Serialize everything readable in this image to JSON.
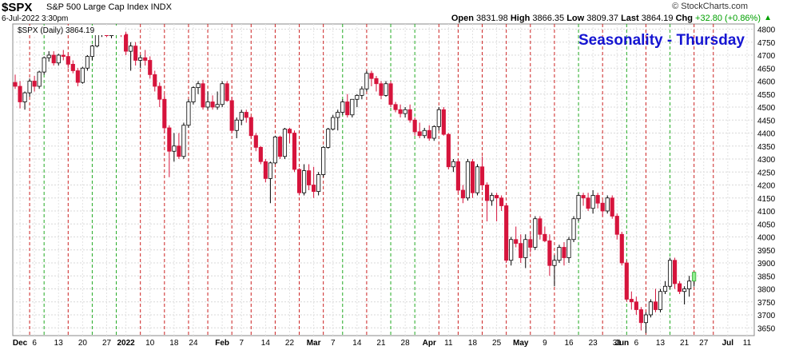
{
  "header": {
    "symbol": "$SPX",
    "description": "S&P 500 Large Cap Index  INDX",
    "datetime": "6-Jul-2022 3:30pm",
    "brand": "© StockCharts.com",
    "open_label": "Open",
    "open": "3831.98",
    "high_label": "High",
    "high": "3866.35",
    "low_label": "Low",
    "low": "3809.37",
    "last_label": "Last",
    "last": "3864.19",
    "chg_label": "Chg",
    "chg": "+32.80 (+0.86%)",
    "up_arrow": "▲"
  },
  "legend": {
    "text": "$SPX (Daily) 3864.19"
  },
  "colors": {
    "up": "#ffffff",
    "down": "#d6143c",
    "outline": "#000000",
    "green_line": "#22aa22",
    "red_line": "#cc2222",
    "title": "#1515d2",
    "last_bar": "#90ee90"
  },
  "chart_data": {
    "type": "candlestick",
    "title": "Seasonality - Thursday",
    "y_ticks": [
      3650,
      3700,
      3750,
      3800,
      3850,
      3900,
      3950,
      4000,
      4050,
      4100,
      4150,
      4200,
      4250,
      4300,
      4350,
      4400,
      4450,
      4500,
      4550,
      4600,
      4650,
      4700,
      4750,
      4800
    ],
    "ylim": [
      3620,
      4820
    ],
    "x_labels": [
      {
        "label": "Dec",
        "bold": true,
        "i": 1
      },
      {
        "label": "6",
        "i": 4
      },
      {
        "label": "13",
        "i": 9
      },
      {
        "label": "20",
        "i": 14
      },
      {
        "label": "27",
        "i": 19
      },
      {
        "label": "2022",
        "bold": true,
        "i": 23
      },
      {
        "label": "10",
        "i": 28
      },
      {
        "label": "18",
        "i": 33
      },
      {
        "label": "24",
        "i": 37
      },
      {
        "label": "Feb",
        "bold": true,
        "i": 43
      },
      {
        "label": "7",
        "i": 47
      },
      {
        "label": "14",
        "i": 52
      },
      {
        "label": "22",
        "i": 57
      },
      {
        "label": "Mar",
        "bold": true,
        "i": 62
      },
      {
        "label": "7",
        "i": 66
      },
      {
        "label": "14",
        "i": 71
      },
      {
        "label": "21",
        "i": 76
      },
      {
        "label": "28",
        "i": 81
      },
      {
        "label": "Apr",
        "bold": true,
        "i": 86
      },
      {
        "label": "11",
        "i": 90
      },
      {
        "label": "18",
        "i": 95
      },
      {
        "label": "25",
        "i": 100
      },
      {
        "label": "May",
        "bold": true,
        "i": 105
      },
      {
        "label": "9",
        "i": 110
      },
      {
        "label": "16",
        "i": 115
      },
      {
        "label": "23",
        "i": 120
      },
      {
        "label": "31",
        "i": 125
      },
      {
        "label": "Jun",
        "bold": true,
        "i": 126
      },
      {
        "label": "6",
        "i": 129
      },
      {
        "label": "13",
        "i": 134
      },
      {
        "label": "21",
        "i": 139
      },
      {
        "label": "27",
        "i": 143
      },
      {
        "label": "Jul",
        "bold": true,
        "i": 148
      },
      {
        "label": "11",
        "i": 152
      }
    ],
    "vlines": [
      {
        "i": 3,
        "c": "r"
      },
      {
        "i": 6,
        "c": "g"
      },
      {
        "i": 11,
        "c": "r"
      },
      {
        "i": 16,
        "c": "g"
      },
      {
        "i": 21,
        "c": "g"
      },
      {
        "i": 26,
        "c": "r"
      },
      {
        "i": 31,
        "c": "r"
      },
      {
        "i": 36,
        "c": "r"
      },
      {
        "i": 40,
        "c": "r"
      },
      {
        "i": 45,
        "c": "r"
      },
      {
        "i": 49,
        "c": "r"
      },
      {
        "i": 54,
        "c": "r"
      },
      {
        "i": 59,
        "c": "r"
      },
      {
        "i": 64,
        "c": "r"
      },
      {
        "i": 68,
        "c": "g"
      },
      {
        "i": 73,
        "c": "r"
      },
      {
        "i": 78,
        "c": "g"
      },
      {
        "i": 83,
        "c": "g"
      },
      {
        "i": 88,
        "c": "r"
      },
      {
        "i": 92,
        "c": "r"
      },
      {
        "i": 97,
        "c": "r"
      },
      {
        "i": 102,
        "c": "r"
      },
      {
        "i": 107,
        "c": "r"
      },
      {
        "i": 112,
        "c": "r"
      },
      {
        "i": 117,
        "c": "g"
      },
      {
        "i": 122,
        "c": "r"
      },
      {
        "i": 127,
        "c": "g"
      },
      {
        "i": 131,
        "c": "r"
      },
      {
        "i": 136,
        "c": "g"
      },
      {
        "i": 141,
        "c": "r"
      },
      {
        "i": 145,
        "c": "r"
      }
    ],
    "n_slots": 154,
    "candles": [
      [
        4595,
        4625,
        4570,
        4580
      ],
      [
        4580,
        4600,
        4495,
        4520
      ],
      [
        4520,
        4560,
        4490,
        4555
      ],
      [
        4555,
        4610,
        4540,
        4600
      ],
      [
        4600,
        4620,
        4560,
        4580
      ],
      [
        4580,
        4640,
        4570,
        4635
      ],
      [
        4635,
        4695,
        4625,
        4690
      ],
      [
        4690,
        4715,
        4675,
        4700
      ],
      [
        4700,
        4715,
        4660,
        4670
      ],
      [
        4670,
        4705,
        4660,
        4700
      ],
      [
        4700,
        4720,
        4680,
        4695
      ],
      [
        4695,
        4710,
        4650,
        4665
      ],
      [
        4665,
        4680,
        4630,
        4640
      ],
      [
        4640,
        4650,
        4580,
        4595
      ],
      [
        4595,
        4655,
        4590,
        4650
      ],
      [
        4650,
        4700,
        4640,
        4695
      ],
      [
        4695,
        4740,
        4680,
        4735
      ],
      [
        4735,
        4790,
        4730,
        4785
      ],
      [
        4785,
        4800,
        4770,
        4790
      ],
      [
        4790,
        4800,
        4770,
        4775
      ],
      [
        4775,
        4795,
        4765,
        4780
      ],
      [
        4780,
        4800,
        4780,
        4795
      ],
      [
        4795,
        4805,
        4770,
        4780
      ],
      [
        4780,
        4790,
        4700,
        4715
      ],
      [
        4715,
        4750,
        4640,
        4735
      ],
      [
        4735,
        4750,
        4660,
        4680
      ],
      [
        4680,
        4700,
        4650,
        4690
      ],
      [
        4690,
        4720,
        4660,
        4680
      ],
      [
        4680,
        4695,
        4610,
        4625
      ],
      [
        4625,
        4640,
        4560,
        4580
      ],
      [
        4580,
        4595,
        4500,
        4530
      ],
      [
        4530,
        4550,
        4400,
        4420
      ],
      [
        4420,
        4430,
        4230,
        4330
      ],
      [
        4330,
        4400,
        4290,
        4350
      ],
      [
        4350,
        4400,
        4300,
        4310
      ],
      [
        4310,
        4440,
        4300,
        4430
      ],
      [
        4430,
        4530,
        4420,
        4520
      ],
      [
        4520,
        4580,
        4510,
        4575
      ],
      [
        4575,
        4600,
        4550,
        4590
      ],
      [
        4590,
        4605,
        4490,
        4500
      ],
      [
        4500,
        4560,
        4490,
        4520
      ],
      [
        4520,
        4545,
        4490,
        4500
      ],
      [
        4500,
        4560,
        4490,
        4510
      ],
      [
        4510,
        4600,
        4500,
        4590
      ],
      [
        4590,
        4600,
        4520,
        4525
      ],
      [
        4525,
        4540,
        4400,
        4410
      ],
      [
        4410,
        4460,
        4380,
        4450
      ],
      [
        4450,
        4490,
        4430,
        4480
      ],
      [
        4480,
        4490,
        4440,
        4460
      ],
      [
        4460,
        4465,
        4380,
        4390
      ],
      [
        4390,
        4400,
        4330,
        4345
      ],
      [
        4345,
        4350,
        4280,
        4290
      ],
      [
        4290,
        4300,
        4210,
        4225
      ],
      [
        4225,
        4290,
        4130,
        4285
      ],
      [
        4285,
        4390,
        4280,
        4385
      ],
      [
        4385,
        4390,
        4300,
        4310
      ],
      [
        4310,
        4420,
        4300,
        4415
      ],
      [
        4415,
        4420,
        4360,
        4400
      ],
      [
        4400,
        4410,
        4250,
        4260
      ],
      [
        4260,
        4265,
        4160,
        4170
      ],
      [
        4170,
        4280,
        4160,
        4255
      ],
      [
        4255,
        4280,
        4180,
        4200
      ],
      [
        4200,
        4270,
        4150,
        4175
      ],
      [
        4175,
        4250,
        4160,
        4240
      ],
      [
        4240,
        4350,
        4230,
        4345
      ],
      [
        4345,
        4420,
        4340,
        4415
      ],
      [
        4415,
        4470,
        4410,
        4460
      ],
      [
        4460,
        4490,
        4410,
        4480
      ],
      [
        4480,
        4530,
        4470,
        4520
      ],
      [
        4520,
        4550,
        4460,
        4470
      ],
      [
        4470,
        4530,
        4460,
        4530
      ],
      [
        4530,
        4550,
        4500,
        4545
      ],
      [
        4545,
        4580,
        4530,
        4570
      ],
      [
        4570,
        4640,
        4560,
        4630
      ],
      [
        4630,
        4640,
        4580,
        4610
      ],
      [
        4610,
        4620,
        4560,
        4590
      ],
      [
        4590,
        4600,
        4530,
        4545
      ],
      [
        4545,
        4600,
        4540,
        4590
      ],
      [
        4590,
        4600,
        4500,
        4510
      ],
      [
        4510,
        4520,
        4480,
        4490
      ],
      [
        4490,
        4510,
        4460,
        4475
      ],
      [
        4475,
        4500,
        4460,
        4490
      ],
      [
        4490,
        4510,
        4440,
        4450
      ],
      [
        4450,
        4460,
        4390,
        4405
      ],
      [
        4405,
        4440,
        4380,
        4390
      ],
      [
        4390,
        4420,
        4380,
        4410
      ],
      [
        4410,
        4430,
        4370,
        4380
      ],
      [
        4380,
        4430,
        4370,
        4425
      ],
      [
        4425,
        4500,
        4410,
        4490
      ],
      [
        4490,
        4500,
        4390,
        4395
      ],
      [
        4395,
        4400,
        4260,
        4270
      ],
      [
        4270,
        4300,
        4250,
        4290
      ],
      [
        4290,
        4300,
        4170,
        4180
      ],
      [
        4180,
        4200,
        4130,
        4150
      ],
      [
        4150,
        4300,
        4140,
        4290
      ],
      [
        4290,
        4300,
        4150,
        4170
      ],
      [
        4170,
        4280,
        4160,
        4270
      ],
      [
        4270,
        4310,
        4180,
        4200
      ],
      [
        4200,
        4210,
        4060,
        4140
      ],
      [
        4140,
        4170,
        4120,
        4160
      ],
      [
        4160,
        4170,
        4060,
        4150
      ],
      [
        4150,
        4160,
        4100,
        4120
      ],
      [
        4120,
        4130,
        3900,
        3910
      ],
      [
        3910,
        4000,
        3890,
        3990
      ],
      [
        3990,
        4040,
        3960,
        3975
      ],
      [
        3975,
        4010,
        3900,
        3920
      ],
      [
        3920,
        4010,
        3880,
        3990
      ],
      [
        3990,
        4020,
        3940,
        3960
      ],
      [
        3960,
        4080,
        3950,
        4070
      ],
      [
        4070,
        4080,
        3990,
        4010
      ],
      [
        4010,
        4040,
        3980,
        3985
      ],
      [
        3985,
        4010,
        3850,
        3890
      ],
      [
        3890,
        3930,
        3810,
        3910
      ],
      [
        3910,
        3970,
        3900,
        3960
      ],
      [
        3960,
        3980,
        3890,
        3920
      ],
      [
        3920,
        4000,
        3900,
        3990
      ],
      [
        3990,
        4080,
        3980,
        4070
      ],
      [
        4070,
        4170,
        4060,
        4160
      ],
      [
        4160,
        4170,
        4120,
        4150
      ],
      [
        4150,
        4170,
        4100,
        4110
      ],
      [
        4110,
        4180,
        4090,
        4160
      ],
      [
        4160,
        4170,
        4110,
        4130
      ],
      [
        4130,
        4140,
        4080,
        4100
      ],
      [
        4100,
        4160,
        4090,
        4150
      ],
      [
        4150,
        4160,
        4070,
        4080
      ],
      [
        4080,
        4090,
        3990,
        4010
      ],
      [
        4010,
        4020,
        3890,
        3900
      ],
      [
        3900,
        3910,
        3750,
        3760
      ],
      [
        3760,
        3790,
        3720,
        3750
      ],
      [
        3750,
        3770,
        3700,
        3720
      ],
      [
        3720,
        3730,
        3640,
        3670
      ],
      [
        3670,
        3710,
        3630,
        3700
      ],
      [
        3700,
        3760,
        3690,
        3750
      ],
      [
        3750,
        3800,
        3710,
        3720
      ],
      [
        3720,
        3800,
        3710,
        3790
      ],
      [
        3790,
        3830,
        3780,
        3810
      ],
      [
        3810,
        3920,
        3800,
        3910
      ],
      [
        3910,
        3920,
        3800,
        3820
      ],
      [
        3820,
        3830,
        3780,
        3790
      ],
      [
        3790,
        3810,
        3740,
        3800
      ],
      [
        3800,
        3850,
        3770,
        3830
      ],
      [
        3830,
        3866,
        3809,
        3864
      ]
    ],
    "candle_start": 0
  }
}
